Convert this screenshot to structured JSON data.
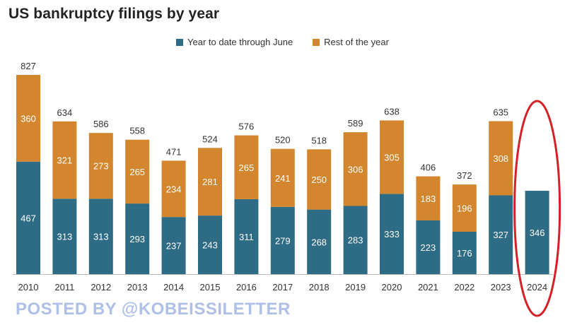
{
  "chart_data": {
    "type": "bar",
    "stacked": true,
    "title": "US bankruptcy filings by year",
    "categories": [
      "2010",
      "2011",
      "2012",
      "2013",
      "2014",
      "2015",
      "2016",
      "2017",
      "2018",
      "2019",
      "2020",
      "2021",
      "2022",
      "2023",
      "2024"
    ],
    "series": [
      {
        "name": "Year to date through June",
        "color": "#2e6b84",
        "values": [
          467,
          313,
          313,
          293,
          237,
          243,
          311,
          279,
          268,
          283,
          333,
          223,
          176,
          327,
          346
        ]
      },
      {
        "name": "Rest of the year",
        "color": "#d3862d",
        "values": [
          360,
          321,
          273,
          265,
          234,
          281,
          265,
          241,
          250,
          306,
          305,
          183,
          196,
          308,
          null
        ]
      }
    ],
    "totals": [
      827,
      634,
      586,
      558,
      471,
      524,
      576,
      520,
      518,
      589,
      638,
      406,
      372,
      635,
      null
    ],
    "ylim": [
      0,
      827
    ],
    "highlight": {
      "category": "2024",
      "color": "#d42027"
    }
  },
  "watermark": "POSTED BY @KOBEISSILETTER"
}
